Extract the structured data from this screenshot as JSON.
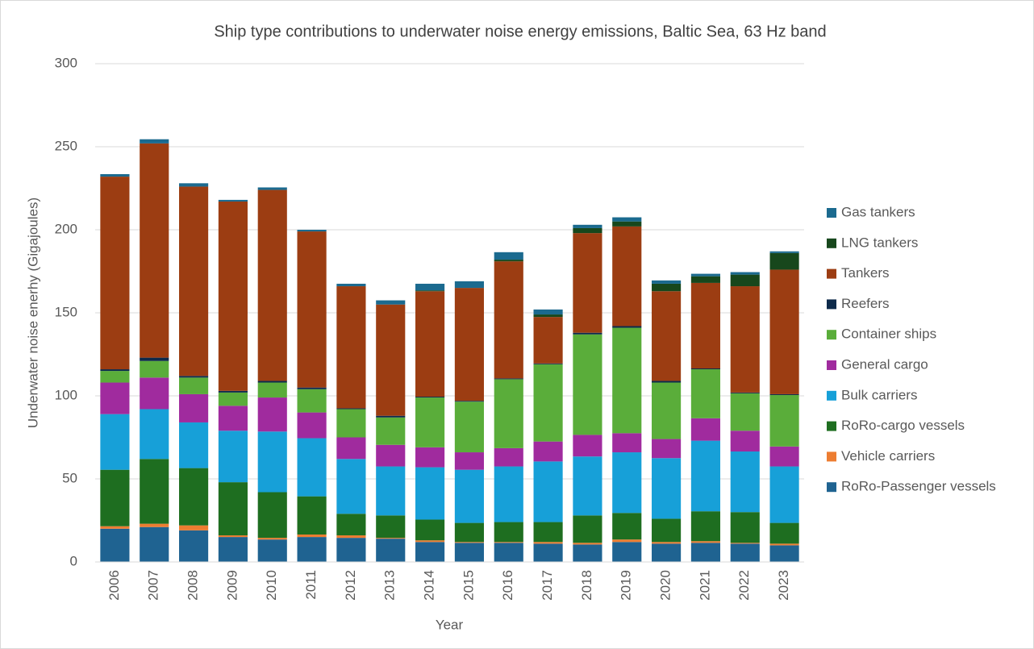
{
  "chart_data": {
    "type": "stacked_bar",
    "title": "Ship type contributions to underwater noise energy emissions, Baltic Sea, 63 Hz band",
    "x_label": "Year",
    "y_label": "Underwater noise enerhy (Gigajoules)",
    "categories": [
      "2006",
      "2007",
      "2008",
      "2009",
      "2010",
      "2011",
      "2012",
      "2013",
      "2014",
      "2015",
      "2016",
      "2017",
      "2018",
      "2019",
      "2020",
      "2021",
      "2022",
      "2023"
    ],
    "series": [
      {
        "name": "RoRo-Passenger vessels",
        "color": "#1f6391",
        "values": [
          20,
          21,
          19,
          15,
          13.5,
          15,
          14.5,
          14,
          12,
          11.5,
          11.5,
          11,
          10.5,
          12,
          11,
          11.5,
          11,
          10
        ]
      },
      {
        "name": "Vehicle carriers",
        "color": "#ed7d31",
        "values": [
          1.5,
          2,
          3,
          1,
          1,
          1.5,
          1.5,
          0.5,
          1,
          0.5,
          0.5,
          1,
          1,
          1.5,
          1,
          1,
          0.5,
          1
        ]
      },
      {
        "name": "RoRo-cargo vessels",
        "color": "#1e6e20",
        "values": [
          34,
          39,
          34.5,
          32,
          27.5,
          23,
          13,
          13.5,
          12.5,
          11.5,
          12,
          12,
          16.5,
          16,
          14,
          18,
          18.5,
          12.5
        ]
      },
      {
        "name": "Bulk carriers",
        "color": "#17a0d8",
        "values": [
          33.5,
          30,
          27.5,
          31,
          36.5,
          35,
          33,
          29.5,
          31.5,
          32,
          33.5,
          36.5,
          35.5,
          36.5,
          36.5,
          42.5,
          36.5,
          34
        ]
      },
      {
        "name": "General cargo",
        "color": "#a02b9e",
        "values": [
          19,
          19,
          17,
          15,
          20.5,
          15.5,
          13,
          13,
          12,
          10.5,
          11,
          12,
          13,
          11.5,
          11.5,
          13.5,
          12.5,
          12
        ]
      },
      {
        "name": "Container ships",
        "color": "#5aad3a",
        "values": [
          7,
          10,
          10,
          8,
          9,
          14,
          17,
          16.5,
          30,
          30.5,
          41.5,
          46.5,
          60.5,
          63.5,
          34,
          29.5,
          22.5,
          31
        ]
      },
      {
        "name": "Reefers",
        "color": "#0d2a4a",
        "values": [
          1,
          2,
          1,
          1,
          1,
          1,
          0.5,
          1,
          0.5,
          0.5,
          0.5,
          0.5,
          1,
          1,
          1,
          0.5,
          0.5,
          0.5
        ]
      },
      {
        "name": "Tankers",
        "color": "#9c3d12",
        "values": [
          116,
          129,
          114,
          114,
          115,
          94,
          73.5,
          67,
          63.5,
          68,
          70.5,
          28,
          60,
          60,
          54,
          51.5,
          64,
          75
        ]
      },
      {
        "name": "LNG tankers",
        "color": "#17471c",
        "values": [
          0,
          0,
          0,
          0,
          0,
          0,
          0,
          0,
          0.5,
          0,
          1,
          1.5,
          3,
          3,
          4.5,
          4,
          7,
          10
        ]
      },
      {
        "name": "Gas tankers",
        "color": "#1b6a8f",
        "values": [
          1.5,
          2.5,
          2,
          1,
          1.5,
          1,
          1.5,
          2.5,
          4,
          4,
          4.5,
          3,
          2,
          2.5,
          2,
          1.5,
          1.5,
          1
        ]
      }
    ],
    "ylim": [
      0,
      300
    ],
    "yticks": [
      0,
      50,
      100,
      150,
      200,
      250,
      300
    ],
    "grid": true,
    "legend": "right"
  }
}
